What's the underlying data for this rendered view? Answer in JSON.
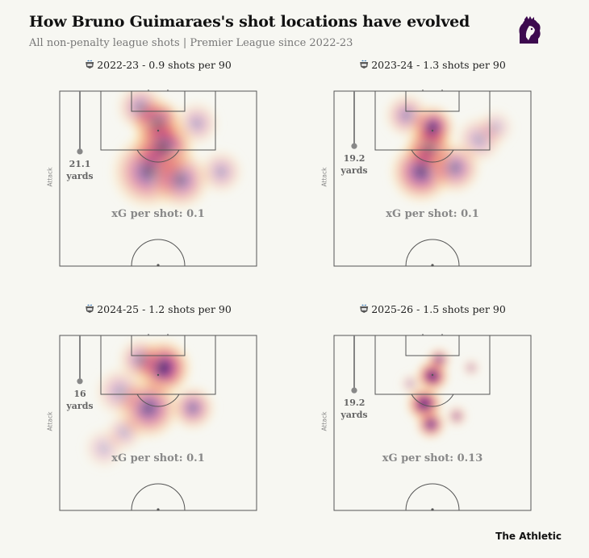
{
  "header": {
    "title": "How Bruno Guimaraes's shot locations have evolved",
    "subtitle": "All non-penalty league shots | Premier League since 2022-23"
  },
  "logo_icon": "premier-league-lion-icon",
  "club_icon": "newcastle-crest-icon",
  "brand": "The Athletic",
  "colors": {
    "background": "#f7f7f2",
    "pitch_lines": "#555555",
    "heat_low": "#fff4b0",
    "heat_mid": "#e8556a",
    "heat_high": "#1e0b3d",
    "annotation": "#888888"
  },
  "chart_data": [
    {
      "type": "heatmap",
      "title": "2022-23 - 0.9 shots per 90",
      "season": "2022-23",
      "shots_per_90": 0.9,
      "avg_distance": "21.1",
      "avg_distance_unit": "yards",
      "attack_label": "Attack",
      "xg_text": "xG per shot: 0.1",
      "xg_per_shot": 0.1
    },
    {
      "type": "heatmap",
      "title": "2023-24 - 1.3 shots per 90",
      "season": "2023-24",
      "shots_per_90": 1.3,
      "avg_distance": "19.2",
      "avg_distance_unit": "yards",
      "attack_label": "Attack",
      "xg_text": "xG per shot: 0.1",
      "xg_per_shot": 0.1
    },
    {
      "type": "heatmap",
      "title": "2024-25 - 1.2 shots per 90",
      "season": "2024-25",
      "shots_per_90": 1.2,
      "avg_distance": "16",
      "avg_distance_unit": "yards",
      "attack_label": "Attack",
      "xg_text": "xG per shot: 0.1",
      "xg_per_shot": 0.1
    },
    {
      "type": "heatmap",
      "title": "2025-26 - 1.5 shots per 90",
      "season": "2025-26",
      "shots_per_90": 1.5,
      "avg_distance": "19.2",
      "avg_distance_unit": "yards",
      "attack_label": "Attack",
      "xg_text": "xG per shot: 0.13",
      "xg_per_shot": 0.13
    }
  ]
}
